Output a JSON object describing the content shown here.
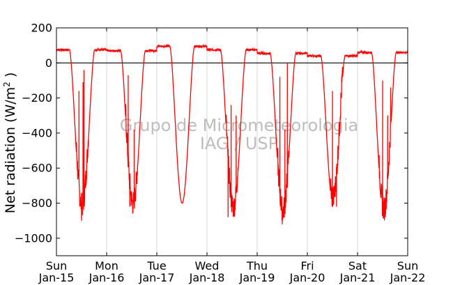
{
  "chart_data": {
    "type": "line",
    "title": "",
    "xlabel": "",
    "ylabel": "Net radiation (W/m² )",
    "ylabel_parts": {
      "main": "Net radiation (W/m",
      "sup": "2",
      "tail": " )"
    },
    "ylim": [
      -1100,
      200
    ],
    "yticks": [
      200,
      0,
      -200,
      -400,
      -600,
      -800,
      -1000
    ],
    "xlim": [
      0,
      7
    ],
    "xtick_labels": [
      [
        "Sun",
        "Jan-15"
      ],
      [
        "Mon",
        "Jan-16"
      ],
      [
        "Tue",
        "Jan-17"
      ],
      [
        "Wed",
        "Jan-18"
      ],
      [
        "Thu",
        "Jan-19"
      ],
      [
        "Fri",
        "Jan-20"
      ],
      [
        "Sat",
        "Jan-21"
      ],
      [
        "Sun",
        "Jan-22"
      ]
    ],
    "grid": "vertical",
    "watermark": [
      "Grupo de Micrometeorologia",
      "IAG / USP"
    ],
    "series_color": "#ff0000",
    "zero_line_color": "#000000",
    "days": [
      {
        "night": 75,
        "min": -840,
        "sunrise": 0.26,
        "sunset": 0.76,
        "dip": 0.52,
        "spikes": [
          [
            0.45,
            -160
          ],
          [
            0.5,
            -900
          ],
          [
            0.53,
            -110
          ],
          [
            0.55,
            -40
          ]
        ]
      },
      {
        "night": 70,
        "min": -830,
        "sunrise": 1.28,
        "sunset": 1.77,
        "dip": 1.5,
        "spikes": [
          [
            1.43,
            -70
          ],
          [
            1.46,
            -820
          ],
          [
            1.55,
            -380
          ]
        ]
      },
      {
        "night": 95,
        "min": -800,
        "sunrise": 2.26,
        "sunset": 2.75,
        "dip": 2.52,
        "spikes": []
      },
      {
        "night": 75,
        "min": -850,
        "sunrise": 3.27,
        "sunset": 3.78,
        "dip": 3.5,
        "spikes": [
          [
            3.38,
            -300
          ],
          [
            3.42,
            -880
          ],
          [
            3.48,
            -240
          ],
          [
            3.58,
            -300
          ]
        ]
      },
      {
        "night": 55,
        "min": -870,
        "sunrise": 4.26,
        "sunset": 4.77,
        "dip": 4.52,
        "spikes": [
          [
            4.45,
            -80
          ],
          [
            4.5,
            -920
          ],
          [
            4.55,
            -380
          ],
          [
            4.6,
            0
          ]
        ]
      },
      {
        "night": 40,
        "min": -800,
        "sunrise": 5.27,
        "sunset": 5.75,
        "dip": 5.58,
        "spikes": [
          [
            5.5,
            -160
          ],
          [
            5.58,
            -820
          ]
        ]
      },
      {
        "night": 60,
        "min": -860,
        "sunrise": 6.28,
        "sunset": 6.77,
        "dip": 6.55,
        "spikes": [
          [
            6.5,
            -100
          ],
          [
            6.55,
            -880
          ],
          [
            6.6,
            -300
          ],
          [
            6.66,
            -140
          ]
        ]
      }
    ]
  }
}
